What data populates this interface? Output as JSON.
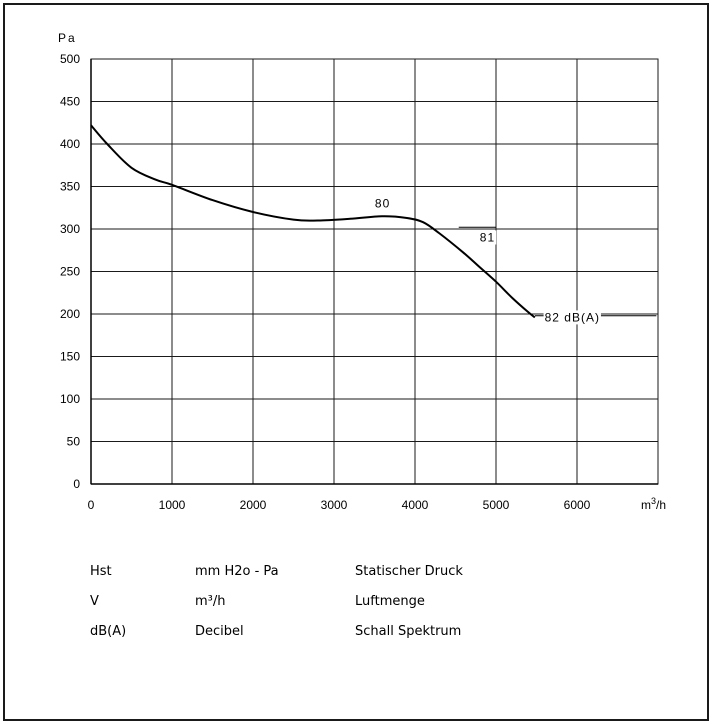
{
  "chart_data": {
    "type": "line",
    "ylabel": "Pa",
    "xlabel_base": "m",
    "xlabel_exp": "3",
    "xlabel_tail": "/h",
    "xlim": [
      0,
      7000
    ],
    "ylim": [
      0,
      500
    ],
    "xticks": [
      0,
      1000,
      2000,
      3000,
      4000,
      5000,
      6000
    ],
    "yticks": [
      0,
      50,
      100,
      150,
      200,
      250,
      300,
      350,
      400,
      450,
      500
    ],
    "grid": true,
    "series": [
      {
        "x": [
          0,
          200,
          500,
          800,
          1000,
          1500,
          2000,
          2500,
          2800,
          3200,
          3600,
          3900,
          4100,
          4300,
          4600,
          4800,
          5000,
          5200,
          5400,
          5480
        ],
        "y": [
          422,
          400,
          372,
          358,
          352,
          334,
          320,
          311,
          310,
          312,
          315,
          313,
          308,
          295,
          272,
          255,
          238,
          219,
          202,
          196
        ]
      }
    ],
    "annotations": [
      {
        "text": "80",
        "x": 3600,
        "y": 330,
        "leader": false
      },
      {
        "text": "81",
        "x": 4800,
        "y": 290,
        "leader": true,
        "lx1": 4540,
        "ly1": 302,
        "lx2": 5000,
        "ly2": 302
      },
      {
        "text": "82 dB(A)",
        "x": 5600,
        "y": 196,
        "leader": true,
        "lx1": 5480,
        "ly1": 198,
        "lx2": 6980,
        "ly2": 198
      }
    ]
  },
  "legend": [
    {
      "symbol": "Hst",
      "unit": "mm H2o - Pa",
      "description": "Statischer Druck"
    },
    {
      "symbol": "V",
      "unit": "m³/h",
      "description": "Luftmenge"
    },
    {
      "symbol": "dB(A)",
      "unit": "Decibel",
      "description": "Schall Spektrum"
    }
  ]
}
